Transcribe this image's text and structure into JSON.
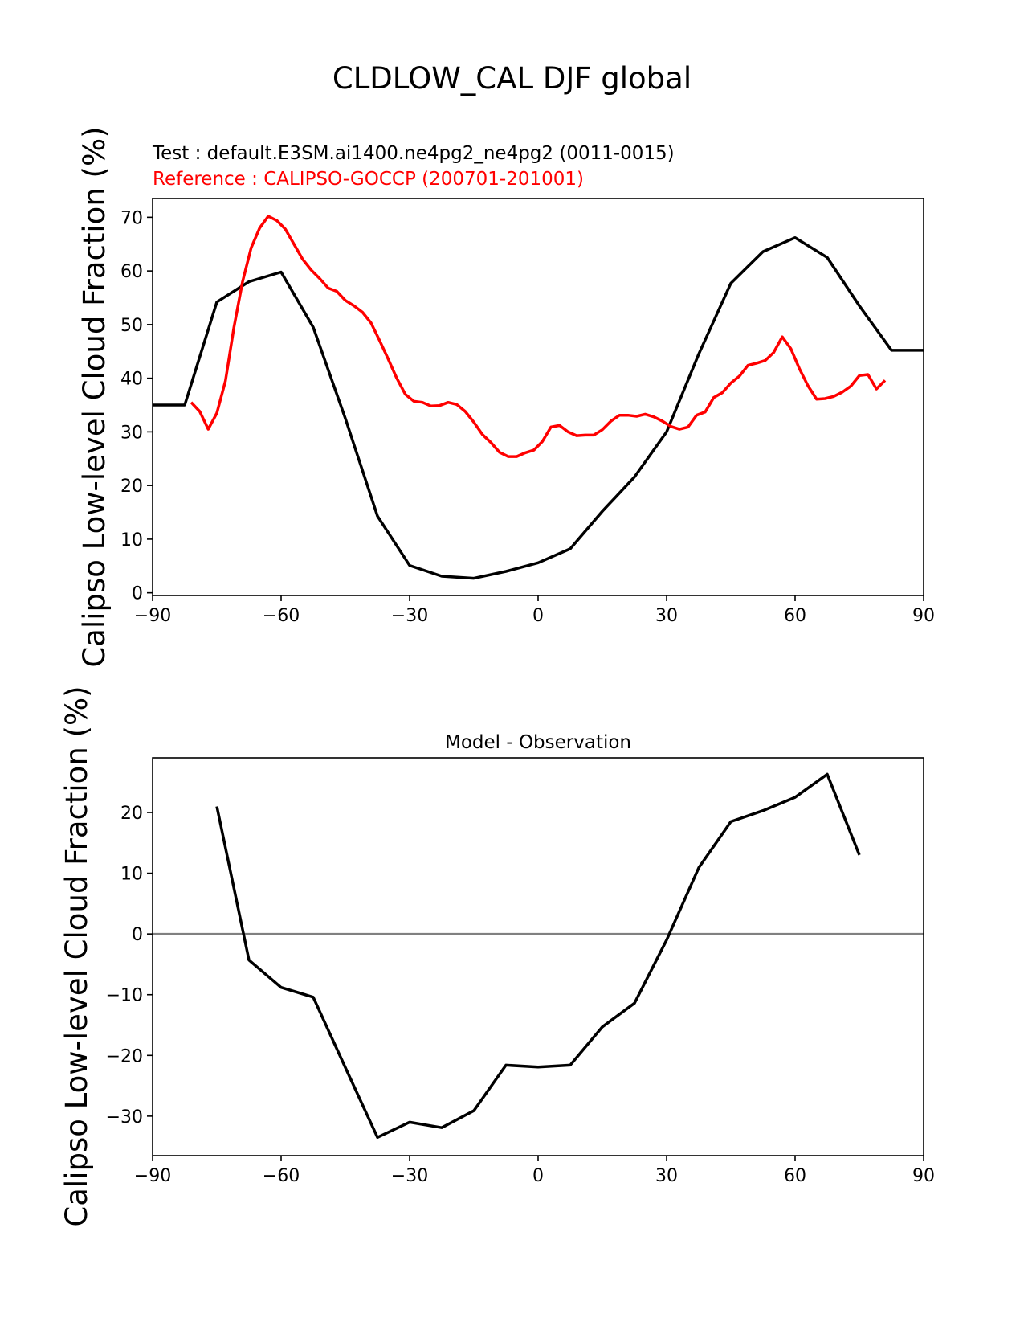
{
  "suptitle": "CLDLOW_CAL DJF global",
  "chart_data": [
    {
      "type": "line",
      "test_label": "Test : default.E3SM.ai1400.ne4pg2_ne4pg2 (0011-0015)",
      "ref_label": "Reference : CALIPSO-GOCCP (200701-201001)",
      "ylabel": "Calipso Low-level Cloud Fraction (%)",
      "xlim": [
        -90,
        90
      ],
      "ylim": [
        -0.5,
        73.5
      ],
      "xticks": [
        -90,
        -60,
        -30,
        0,
        30,
        60,
        90
      ],
      "xtick_labels": [
        "−90",
        "−60",
        "−30",
        "0",
        "30",
        "60",
        "90"
      ],
      "yticks": [
        0,
        10,
        20,
        30,
        40,
        50,
        60,
        70
      ],
      "ytick_labels": [
        "0",
        "10",
        "20",
        "30",
        "40",
        "50",
        "60",
        "70"
      ],
      "series": [
        {
          "name": "Test",
          "color": "#000000",
          "x": [
            -90,
            -82.5,
            -75,
            -67.5,
            -60,
            -52.5,
            -45,
            -37.5,
            -30,
            -22.5,
            -15,
            -7.5,
            0,
            7.5,
            15,
            22.5,
            30,
            37.5,
            45,
            52.5,
            60,
            67.5,
            75,
            82.5,
            90
          ],
          "y": [
            35,
            35,
            54.2,
            58,
            59.8,
            49.5,
            32.5,
            14.3,
            5.1,
            3.1,
            2.7,
            4,
            5.6,
            8.2,
            15.2,
            21.6,
            30,
            44.5,
            57.7,
            63.6,
            66.2,
            62.5,
            53.5,
            45.2,
            45.2
          ]
        },
        {
          "name": "Reference",
          "color": "#ff0000",
          "x": [
            -81,
            -79,
            -77,
            -75,
            -73,
            -71,
            -69,
            -67,
            -65,
            -63,
            -61,
            -59,
            -57,
            -55,
            -53,
            -51,
            -49,
            -47,
            -45,
            -43,
            -41,
            -39,
            -37,
            -35,
            -33,
            -31,
            -29,
            -27,
            -25,
            -23,
            -21,
            -19,
            -17,
            -15,
            -13,
            -11,
            -9,
            -7,
            -5,
            -3,
            -1,
            1,
            3,
            5,
            7,
            9,
            11,
            13,
            15,
            17,
            19,
            21,
            23,
            25,
            27,
            29,
            31,
            33,
            35,
            37,
            39,
            41,
            43,
            45,
            47,
            49,
            51,
            53,
            55,
            57,
            59,
            61,
            63,
            65,
            67,
            69,
            71,
            73,
            75,
            77,
            79,
            81
          ],
          "y": [
            35.5,
            33.8,
            30.5,
            33.5,
            39.5,
            49.5,
            58,
            64.3,
            68,
            70.2,
            69.4,
            67.8,
            65,
            62.2,
            60.2,
            58.6,
            56.8,
            56.2,
            54.5,
            53.5,
            52.3,
            50.3,
            47,
            43.6,
            40,
            37,
            35.7,
            35.5,
            34.8,
            34.9,
            35.5,
            35.1,
            33.8,
            31.8,
            29.5,
            28,
            26.2,
            25.4,
            25.4,
            26.1,
            26.6,
            28.2,
            30.9,
            31.2,
            30,
            29.3,
            29.4,
            29.4,
            30.4,
            32,
            33.1,
            33.1,
            32.9,
            33.3,
            32.8,
            32,
            31,
            30.5,
            30.9,
            33.1,
            33.7,
            36.4,
            37.3,
            39.1,
            40.4,
            42.4,
            42.8,
            43.3,
            44.8,
            47.7,
            45.5,
            41.8,
            38.6,
            36.1,
            36.2,
            36.6,
            37.4,
            38.5,
            40.5,
            40.7,
            38,
            39.6
          ]
        }
      ]
    },
    {
      "type": "line",
      "title": "Model - Observation",
      "ylabel": "Calipso Low-level Cloud Fraction (%)",
      "xlim": [
        -90,
        90
      ],
      "ylim": [
        -36.5,
        29
      ],
      "xticks": [
        -90,
        -60,
        -30,
        0,
        30,
        60,
        90
      ],
      "xtick_labels": [
        "−90",
        "−60",
        "−30",
        "0",
        "30",
        "60",
        "90"
      ],
      "yticks": [
        -30,
        -20,
        -10,
        0,
        10,
        20
      ],
      "ytick_labels": [
        "−30",
        "−20",
        "−10",
        "0",
        "10",
        "20"
      ],
      "zero_line_color": "#808080",
      "series": [
        {
          "name": "Model - Observation",
          "color": "#000000",
          "x": [
            -75,
            -67.5,
            -60,
            -52.5,
            -45,
            -37.5,
            -30,
            -22.5,
            -15,
            -7.5,
            0,
            7.5,
            15,
            22.5,
            30,
            37.5,
            45,
            52.5,
            60,
            67.5,
            75
          ],
          "y": [
            21,
            -4.3,
            -8.8,
            -10.4,
            -22,
            -33.5,
            -31,
            -31.9,
            -29.1,
            -21.6,
            -21.9,
            -21.6,
            -15.3,
            -11.4,
            -1,
            10.9,
            18.5,
            20.3,
            22.5,
            26.3,
            13
          ]
        }
      ]
    }
  ]
}
